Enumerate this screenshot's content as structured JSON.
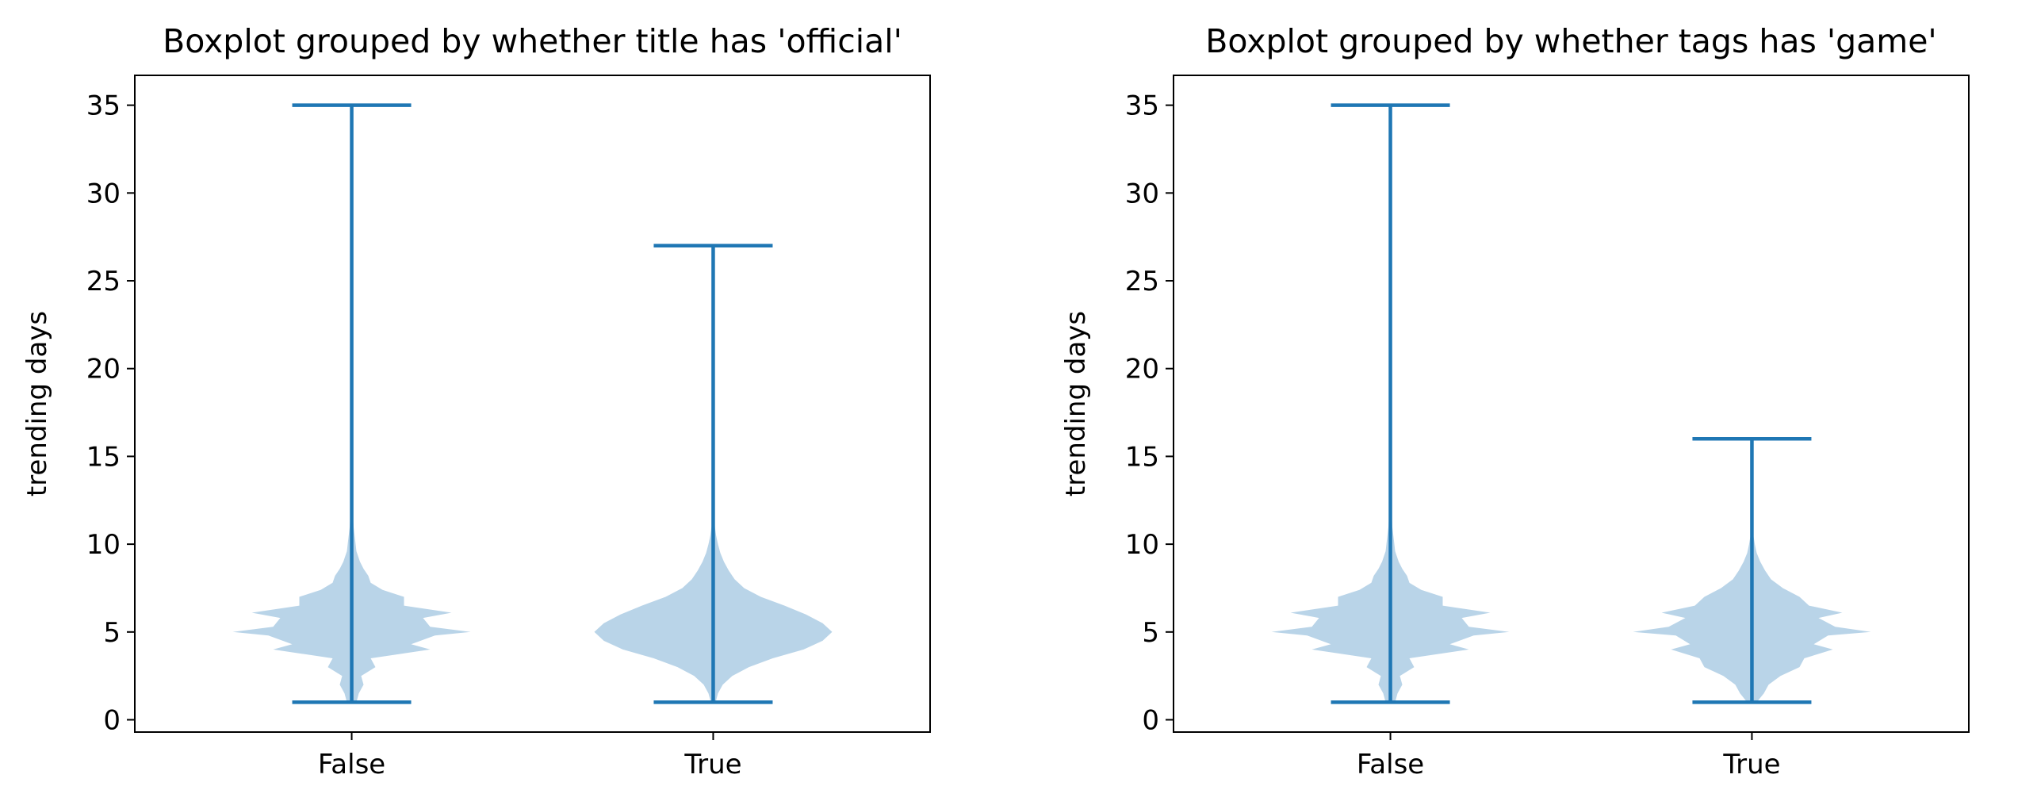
{
  "chart_data": [
    {
      "type": "violin",
      "title": "Boxplot grouped by whether title has 'official'",
      "xlabel": "",
      "ylabel": "trending days",
      "categories": [
        "False",
        "True"
      ],
      "ylim": [
        -0.7,
        36.7
      ],
      "yticks": [
        0,
        5,
        10,
        15,
        20,
        25,
        30,
        35
      ],
      "grid": false,
      "colors": {
        "extrema_lines": "#1f77b4",
        "violin_body": "#b9d4e8"
      },
      "groups": [
        {
          "category": "False",
          "min": 1,
          "max": 35,
          "density": [
            [
              1,
              0.02
            ],
            [
              1.5,
              0.03
            ],
            [
              2,
              0.05
            ],
            [
              2.5,
              0.04
            ],
            [
              3,
              0.1
            ],
            [
              3.5,
              0.08
            ],
            [
              4,
              0.33
            ],
            [
              4.3,
              0.25
            ],
            [
              4.8,
              0.35
            ],
            [
              5,
              0.5
            ],
            [
              5.3,
              0.33
            ],
            [
              5.8,
              0.3
            ],
            [
              6.1,
              0.42
            ],
            [
              6.5,
              0.22
            ],
            [
              7,
              0.22
            ],
            [
              7.4,
              0.13
            ],
            [
              7.8,
              0.08
            ],
            [
              8.2,
              0.07
            ],
            [
              8.6,
              0.05
            ],
            [
              9,
              0.035
            ],
            [
              9.6,
              0.02
            ],
            [
              10.2,
              0.015
            ],
            [
              11,
              0.008
            ],
            [
              12,
              0.004
            ],
            [
              14,
              0.002
            ],
            [
              16,
              0.001
            ],
            [
              20,
              0.0005
            ],
            [
              35,
              0.0002
            ]
          ]
        },
        {
          "category": "True",
          "min": 1,
          "max": 27,
          "density": [
            [
              1,
              0.01
            ],
            [
              1.5,
              0.02
            ],
            [
              2,
              0.04
            ],
            [
              2.5,
              0.08
            ],
            [
              3,
              0.15
            ],
            [
              3.5,
              0.25
            ],
            [
              4,
              0.38
            ],
            [
              4.5,
              0.46
            ],
            [
              5,
              0.5
            ],
            [
              5.5,
              0.46
            ],
            [
              6,
              0.39
            ],
            [
              6.5,
              0.3
            ],
            [
              7,
              0.2
            ],
            [
              7.5,
              0.13
            ],
            [
              8,
              0.09
            ],
            [
              8.5,
              0.065
            ],
            [
              9,
              0.045
            ],
            [
              9.5,
              0.03
            ],
            [
              10,
              0.02
            ],
            [
              10.5,
              0.012
            ],
            [
              11,
              0.007
            ],
            [
              12,
              0.004
            ],
            [
              14,
              0.002
            ],
            [
              17,
              0.001
            ],
            [
              22,
              0.0005
            ],
            [
              27,
              0.0002
            ]
          ]
        }
      ]
    },
    {
      "type": "violin",
      "title": "Boxplot grouped by whether tags has 'game'",
      "xlabel": "",
      "ylabel": "trending days",
      "categories": [
        "False",
        "True"
      ],
      "ylim": [
        -0.7,
        36.7
      ],
      "yticks": [
        0,
        5,
        10,
        15,
        20,
        25,
        30,
        35
      ],
      "grid": false,
      "colors": {
        "extrema_lines": "#1f77b4",
        "violin_body": "#b9d4e8"
      },
      "groups": [
        {
          "category": "False",
          "min": 1,
          "max": 35,
          "density": [
            [
              1,
              0.02
            ],
            [
              1.5,
              0.03
            ],
            [
              2,
              0.05
            ],
            [
              2.5,
              0.04
            ],
            [
              3,
              0.1
            ],
            [
              3.5,
              0.08
            ],
            [
              4,
              0.33
            ],
            [
              4.3,
              0.25
            ],
            [
              4.8,
              0.35
            ],
            [
              5,
              0.5
            ],
            [
              5.3,
              0.33
            ],
            [
              5.8,
              0.3
            ],
            [
              6.1,
              0.42
            ],
            [
              6.5,
              0.22
            ],
            [
              7,
              0.22
            ],
            [
              7.4,
              0.13
            ],
            [
              7.8,
              0.08
            ],
            [
              8.2,
              0.07
            ],
            [
              8.6,
              0.05
            ],
            [
              9,
              0.035
            ],
            [
              9.6,
              0.02
            ],
            [
              10.2,
              0.015
            ],
            [
              11,
              0.008
            ],
            [
              12,
              0.004
            ],
            [
              14,
              0.002
            ],
            [
              16,
              0.001
            ],
            [
              20,
              0.0005
            ],
            [
              35,
              0.0002
            ]
          ]
        },
        {
          "category": "True",
          "min": 1,
          "max": 16,
          "density": [
            [
              1,
              0.02
            ],
            [
              1.5,
              0.05
            ],
            [
              2,
              0.07
            ],
            [
              2.5,
              0.12
            ],
            [
              3,
              0.2
            ],
            [
              3.5,
              0.22
            ],
            [
              4,
              0.34
            ],
            [
              4.3,
              0.26
            ],
            [
              4.8,
              0.32
            ],
            [
              5,
              0.5
            ],
            [
              5.3,
              0.35
            ],
            [
              5.8,
              0.28
            ],
            [
              6.1,
              0.38
            ],
            [
              6.5,
              0.24
            ],
            [
              7,
              0.2
            ],
            [
              7.5,
              0.13
            ],
            [
              8,
              0.08
            ],
            [
              8.5,
              0.055
            ],
            [
              9,
              0.035
            ],
            [
              9.5,
              0.02
            ],
            [
              10,
              0.012
            ],
            [
              10.5,
              0.006
            ],
            [
              11,
              0.003
            ],
            [
              13,
              0.0015
            ],
            [
              16,
              0.0005
            ]
          ]
        }
      ]
    }
  ]
}
